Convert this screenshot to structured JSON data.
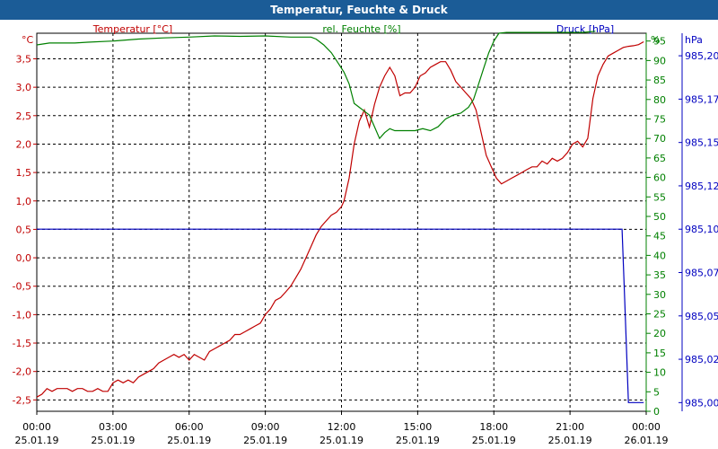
{
  "window_title": "Temperatur, Feuchte & Druck",
  "colors": {
    "temperature": "#c00000",
    "humidity": "#008000",
    "pressure": "#0000c0",
    "title_bar": "#1b5c97"
  },
  "chart_data": {
    "type": "line",
    "title": "Temperatur, Feuchte & Druck",
    "grid": true,
    "x_ticks": [
      {
        "time": "00:00",
        "date": "25.01.19"
      },
      {
        "time": "03:00",
        "date": "25.01.19"
      },
      {
        "time": "06:00",
        "date": "25.01.19"
      },
      {
        "time": "09:00",
        "date": "25.01.19"
      },
      {
        "time": "12:00",
        "date": "25.01.19"
      },
      {
        "time": "15:00",
        "date": "25.01.19"
      },
      {
        "time": "18:00",
        "date": "25.01.19"
      },
      {
        "time": "21:00",
        "date": "25.01.19"
      },
      {
        "time": "00:00",
        "date": "26.01.19"
      }
    ],
    "x_range_hours": [
      0,
      24
    ],
    "axes": {
      "temperature": {
        "label": "Temperatur [°C]",
        "unit": "°C",
        "range": [
          -2.7,
          3.95
        ],
        "ticks": [
          "3,5",
          "3,0",
          "2,5",
          "2,0",
          "1,5",
          "1,0",
          "0,5",
          "0,0",
          "-0,5",
          "-1,0",
          "-1,5",
          "-2,0",
          "-2,5"
        ],
        "tick_values": [
          3.5,
          3.0,
          2.5,
          2.0,
          1.5,
          1.0,
          0.5,
          0.0,
          -0.5,
          -1.0,
          -1.5,
          -2.0,
          -2.5
        ]
      },
      "humidity": {
        "label": "rel. Feuchte [%]",
        "unit": "%",
        "range": [
          0,
          97
        ],
        "ticks": [
          "95",
          "90",
          "85",
          "80",
          "75",
          "70",
          "65",
          "60",
          "55",
          "50",
          "45",
          "40",
          "35",
          "30",
          "25",
          "20",
          "15",
          "10",
          "5",
          "0"
        ],
        "tick_values": [
          95,
          90,
          85,
          80,
          75,
          70,
          65,
          60,
          55,
          50,
          45,
          40,
          35,
          30,
          25,
          20,
          15,
          10,
          5,
          0
        ]
      },
      "pressure": {
        "label": "Druck [hPa]",
        "unit": "hPa",
        "range": [
          984.995,
          985.213
        ],
        "ticks": [
          "985,20",
          "985,17",
          "985,15",
          "985,12",
          "985,10",
          "985,07",
          "985,05",
          "985,02",
          "985,00"
        ],
        "tick_values": [
          985.2,
          985.175,
          985.15,
          985.125,
          985.1,
          985.075,
          985.05,
          985.025,
          985.0
        ]
      }
    },
    "series": [
      {
        "name": "Temperatur [°C]",
        "axis": "temperature",
        "points": [
          [
            0,
            -2.45
          ],
          [
            0.2,
            -2.4
          ],
          [
            0.4,
            -2.3
          ],
          [
            0.6,
            -2.35
          ],
          [
            0.8,
            -2.3
          ],
          [
            1.0,
            -2.3
          ],
          [
            1.2,
            -2.3
          ],
          [
            1.4,
            -2.35
          ],
          [
            1.6,
            -2.3
          ],
          [
            1.8,
            -2.3
          ],
          [
            2.0,
            -2.35
          ],
          [
            2.2,
            -2.35
          ],
          [
            2.4,
            -2.3
          ],
          [
            2.6,
            -2.35
          ],
          [
            2.8,
            -2.35
          ],
          [
            3.0,
            -2.2
          ],
          [
            3.2,
            -2.15
          ],
          [
            3.4,
            -2.2
          ],
          [
            3.6,
            -2.15
          ],
          [
            3.8,
            -2.2
          ],
          [
            4.0,
            -2.1
          ],
          [
            4.2,
            -2.05
          ],
          [
            4.4,
            -2.0
          ],
          [
            4.6,
            -1.95
          ],
          [
            4.8,
            -1.85
          ],
          [
            5.0,
            -1.8
          ],
          [
            5.2,
            -1.75
          ],
          [
            5.4,
            -1.7
          ],
          [
            5.6,
            -1.75
          ],
          [
            5.8,
            -1.7
          ],
          [
            6.0,
            -1.8
          ],
          [
            6.2,
            -1.7
          ],
          [
            6.4,
            -1.75
          ],
          [
            6.6,
            -1.8
          ],
          [
            6.8,
            -1.65
          ],
          [
            7.0,
            -1.6
          ],
          [
            7.2,
            -1.55
          ],
          [
            7.4,
            -1.5
          ],
          [
            7.6,
            -1.45
          ],
          [
            7.8,
            -1.35
          ],
          [
            8.0,
            -1.35
          ],
          [
            8.2,
            -1.3
          ],
          [
            8.4,
            -1.25
          ],
          [
            8.6,
            -1.2
          ],
          [
            8.8,
            -1.15
          ],
          [
            9.0,
            -1.0
          ],
          [
            9.2,
            -0.9
          ],
          [
            9.4,
            -0.75
          ],
          [
            9.6,
            -0.7
          ],
          [
            9.8,
            -0.6
          ],
          [
            10.0,
            -0.5
          ],
          [
            10.2,
            -0.35
          ],
          [
            10.4,
            -0.2
          ],
          [
            10.6,
            0.0
          ],
          [
            10.8,
            0.2
          ],
          [
            11.0,
            0.4
          ],
          [
            11.2,
            0.55
          ],
          [
            11.4,
            0.65
          ],
          [
            11.6,
            0.75
          ],
          [
            11.8,
            0.8
          ],
          [
            12.0,
            0.9
          ],
          [
            12.1,
            1.0
          ],
          [
            12.3,
            1.4
          ],
          [
            12.5,
            2.0
          ],
          [
            12.7,
            2.4
          ],
          [
            12.9,
            2.6
          ],
          [
            13.1,
            2.3
          ],
          [
            13.3,
            2.7
          ],
          [
            13.5,
            3.0
          ],
          [
            13.7,
            3.2
          ],
          [
            13.9,
            3.35
          ],
          [
            14.1,
            3.2
          ],
          [
            14.3,
            2.85
          ],
          [
            14.5,
            2.9
          ],
          [
            14.7,
            2.9
          ],
          [
            14.9,
            3.0
          ],
          [
            15.1,
            3.2
          ],
          [
            15.3,
            3.25
          ],
          [
            15.5,
            3.35
          ],
          [
            15.7,
            3.4
          ],
          [
            15.9,
            3.45
          ],
          [
            16.1,
            3.45
          ],
          [
            16.3,
            3.3
          ],
          [
            16.5,
            3.1
          ],
          [
            16.7,
            3.0
          ],
          [
            16.9,
            2.9
          ],
          [
            17.1,
            2.8
          ],
          [
            17.3,
            2.6
          ],
          [
            17.5,
            2.2
          ],
          [
            17.7,
            1.8
          ],
          [
            17.9,
            1.6
          ],
          [
            18.1,
            1.4
          ],
          [
            18.3,
            1.3
          ],
          [
            18.5,
            1.35
          ],
          [
            18.7,
            1.4
          ],
          [
            18.9,
            1.45
          ],
          [
            19.1,
            1.5
          ],
          [
            19.3,
            1.55
          ],
          [
            19.5,
            1.6
          ],
          [
            19.7,
            1.6
          ],
          [
            19.9,
            1.7
          ],
          [
            20.1,
            1.65
          ],
          [
            20.3,
            1.75
          ],
          [
            20.5,
            1.7
          ],
          [
            20.7,
            1.75
          ],
          [
            20.9,
            1.85
          ],
          [
            21.1,
            2.0
          ],
          [
            21.3,
            2.05
          ],
          [
            21.5,
            1.95
          ],
          [
            21.7,
            2.1
          ],
          [
            21.9,
            2.8
          ],
          [
            22.1,
            3.2
          ],
          [
            22.3,
            3.4
          ],
          [
            22.5,
            3.55
          ],
          [
            22.7,
            3.6
          ],
          [
            22.9,
            3.65
          ],
          [
            23.1,
            3.7
          ],
          [
            23.3,
            3.72
          ],
          [
            23.5,
            3.73
          ],
          [
            23.7,
            3.75
          ],
          [
            23.9,
            3.8
          ]
        ]
      },
      {
        "name": "rel. Feuchte [%]",
        "axis": "humidity",
        "points": [
          [
            0,
            94.0
          ],
          [
            0.5,
            94.5
          ],
          [
            1.0,
            94.5
          ],
          [
            1.5,
            94.5
          ],
          [
            2.0,
            94.7
          ],
          [
            3.0,
            95.0
          ],
          [
            4.0,
            95.5
          ],
          [
            5.0,
            95.8
          ],
          [
            6.0,
            96.0
          ],
          [
            7.0,
            96.3
          ],
          [
            8.0,
            96.2
          ],
          [
            9.0,
            96.3
          ],
          [
            10.0,
            96.0
          ],
          [
            10.8,
            96.0
          ],
          [
            11.0,
            95.5
          ],
          [
            11.3,
            94.0
          ],
          [
            11.6,
            92.0
          ],
          [
            11.9,
            89.0
          ],
          [
            12.1,
            87.0
          ],
          [
            12.3,
            84.0
          ],
          [
            12.5,
            79.0
          ],
          [
            12.7,
            78.0
          ],
          [
            12.9,
            77.0
          ],
          [
            13.1,
            76.0
          ],
          [
            13.3,
            73.0
          ],
          [
            13.5,
            70.0
          ],
          [
            13.7,
            71.5
          ],
          [
            13.9,
            72.5
          ],
          [
            14.1,
            72.0
          ],
          [
            14.3,
            72.0
          ],
          [
            14.6,
            72.0
          ],
          [
            14.9,
            72.0
          ],
          [
            15.2,
            72.5
          ],
          [
            15.5,
            72.0
          ],
          [
            15.8,
            73.0
          ],
          [
            16.1,
            75.0
          ],
          [
            16.4,
            76.0
          ],
          [
            16.7,
            76.5
          ],
          [
            17.0,
            78.0
          ],
          [
            17.2,
            80.0
          ],
          [
            17.4,
            84.0
          ],
          [
            17.6,
            88.0
          ],
          [
            17.8,
            92.0
          ],
          [
            18.0,
            95.0
          ],
          [
            18.2,
            97.0
          ],
          [
            18.5,
            97.2
          ],
          [
            19.0,
            97.2
          ],
          [
            20.0,
            97.2
          ],
          [
            21.0,
            97.2
          ],
          [
            21.5,
            97.2
          ],
          [
            22.0,
            97.5
          ]
        ]
      },
      {
        "name": "Druck [hPa]",
        "axis": "pressure",
        "points": [
          [
            0,
            985.1
          ],
          [
            23.0,
            985.1
          ],
          [
            23.05,
            985.1
          ],
          [
            23.15,
            985.06
          ],
          [
            23.25,
            985.02
          ],
          [
            23.3,
            985.0
          ],
          [
            23.9,
            985.0
          ]
        ]
      }
    ]
  }
}
